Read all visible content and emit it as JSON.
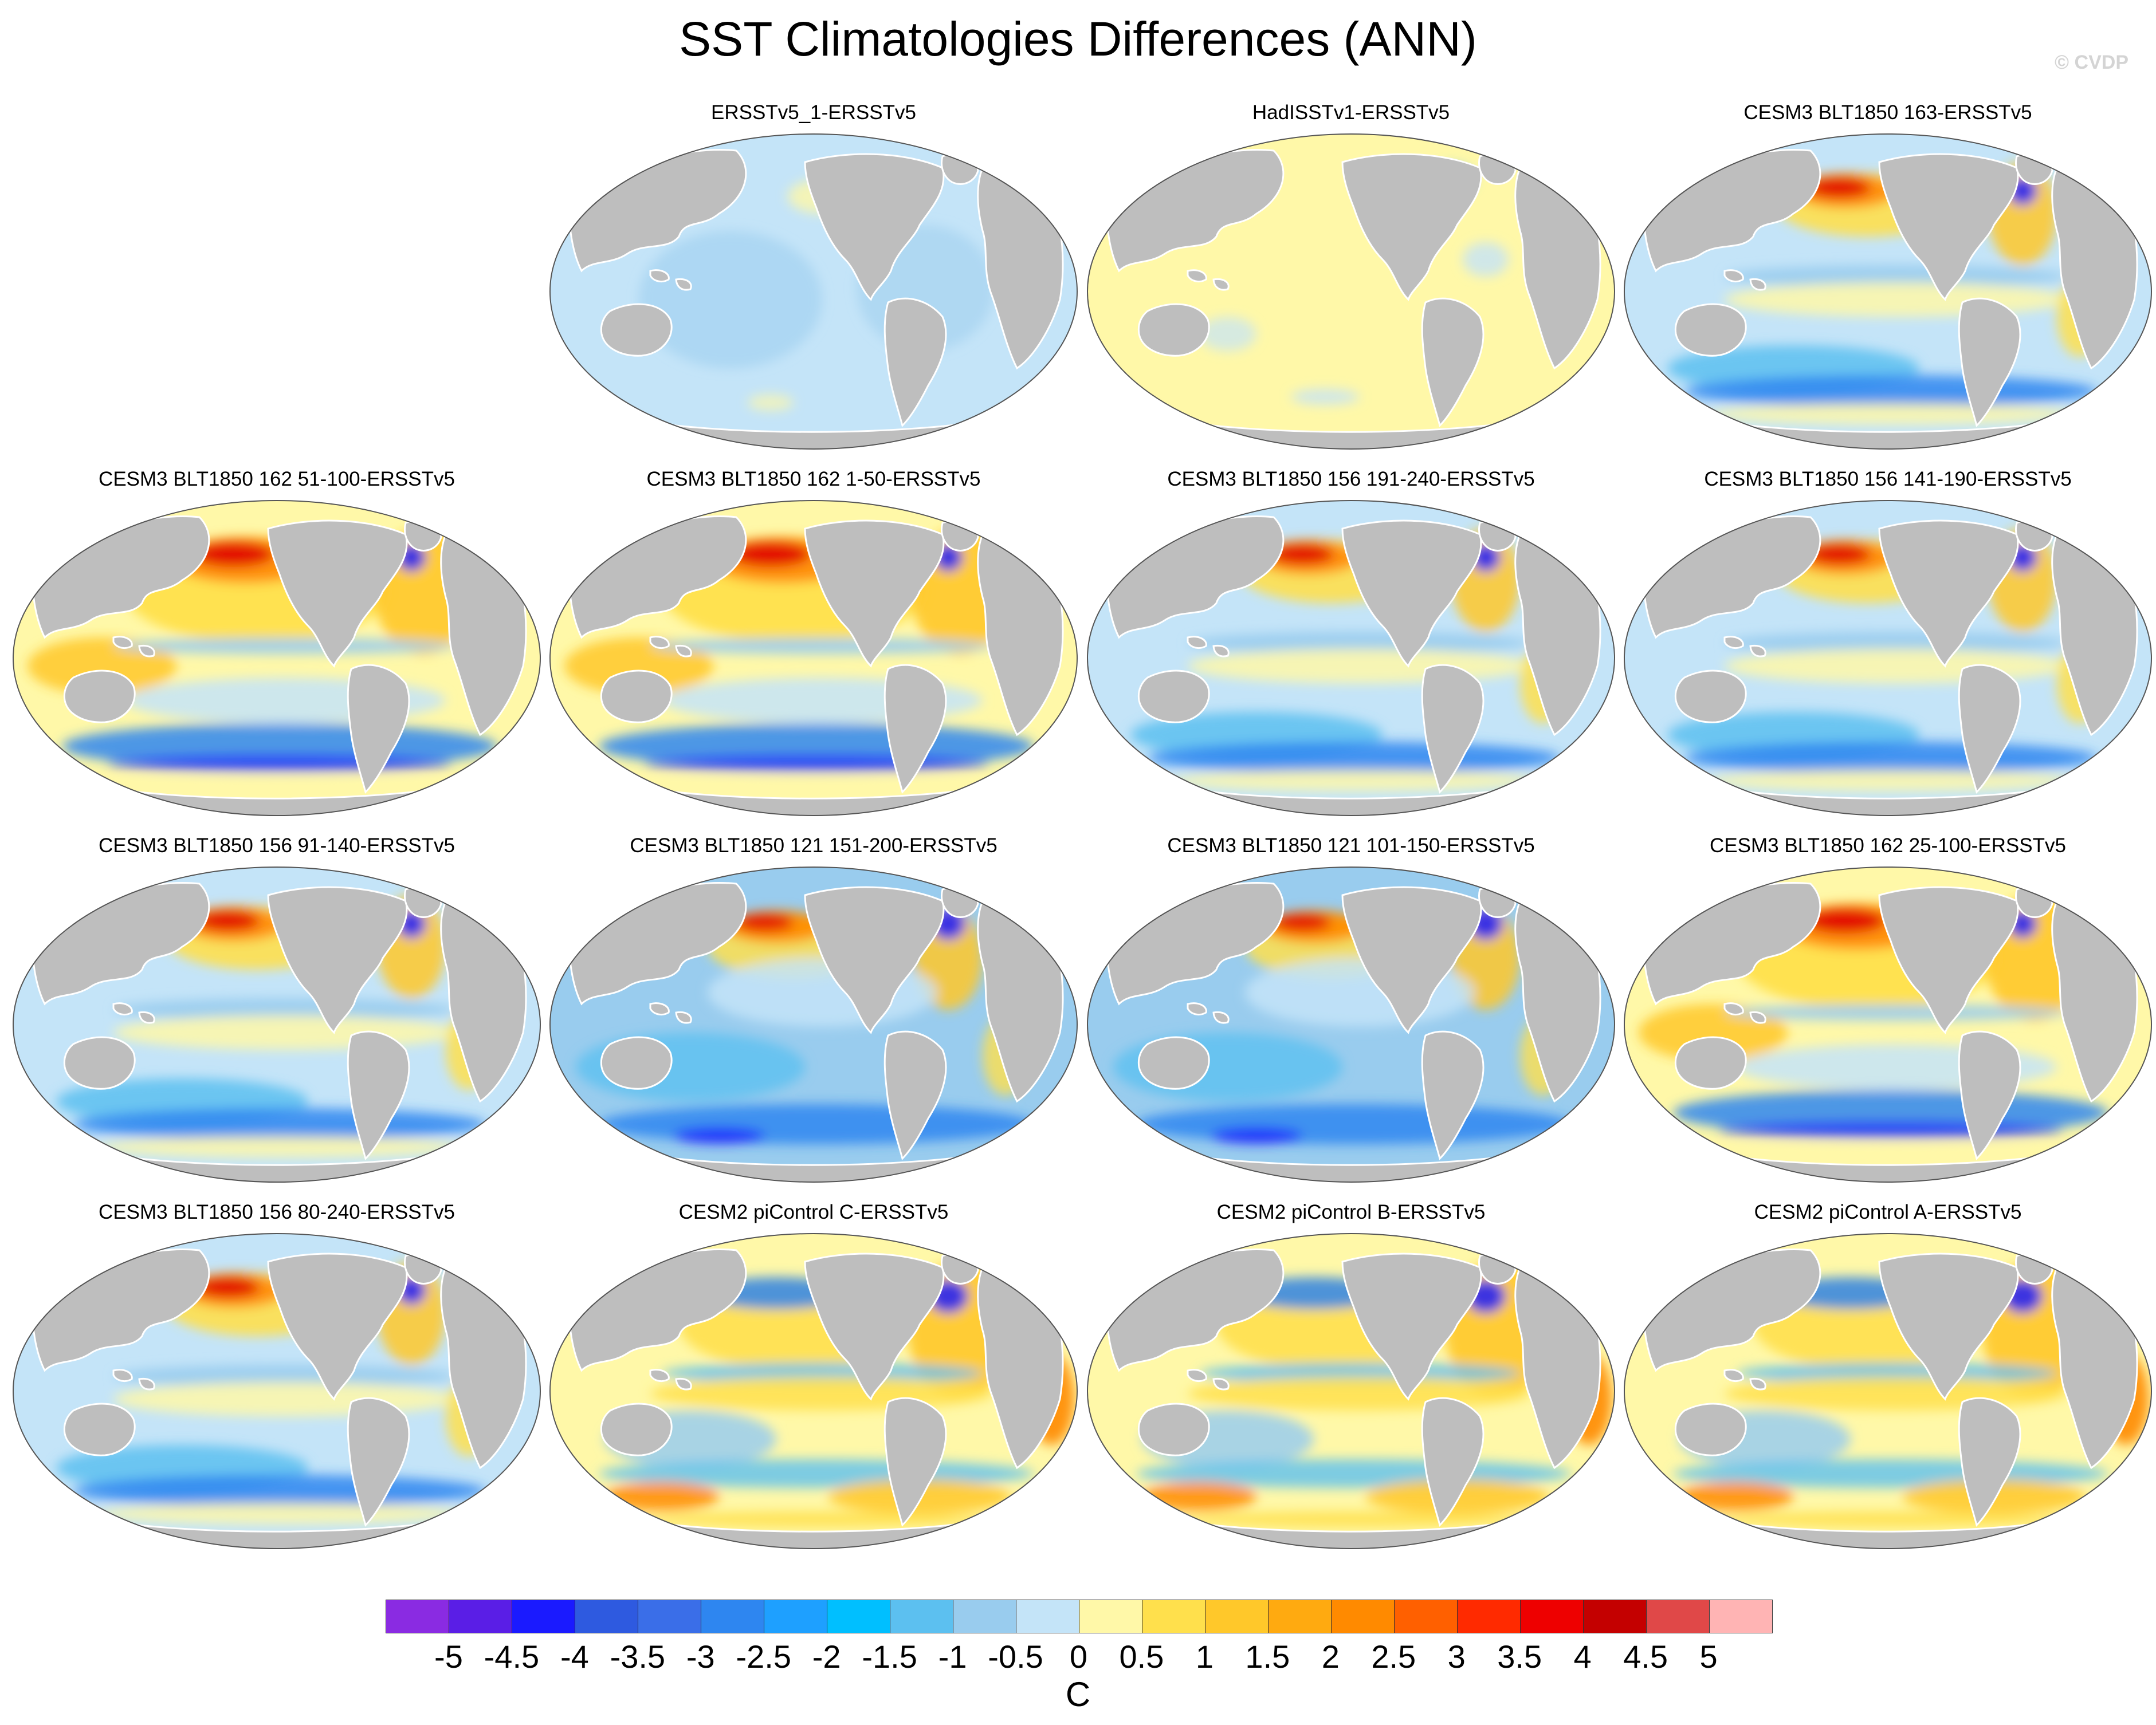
{
  "title": "SST Climatologies Differences (ANN)",
  "copyright": "© CVDP",
  "panels": [
    {
      "title": "ERSSTv5_1-ERSSTv5",
      "pattern": "uniform_cool"
    },
    {
      "title": "HadISSTv1-ERSSTv5",
      "pattern": "uniform_warm"
    },
    {
      "title": "CESM3 BLT1850 163-ERSSTv5",
      "pattern": "cesm3_cool"
    },
    {
      "title": "CESM3 BLT1850 162 51-100-ERSSTv5",
      "pattern": "cesm3_warm"
    },
    {
      "title": "CESM3 BLT1850 162 1-50-ERSSTv5",
      "pattern": "cesm3_warm"
    },
    {
      "title": "CESM3 BLT1850 156 191-240-ERSSTv5",
      "pattern": "cesm3_cool"
    },
    {
      "title": "CESM3 BLT1850 156 141-190-ERSSTv5",
      "pattern": "cesm3_cool"
    },
    {
      "title": "CESM3 BLT1850 156 91-140-ERSSTv5",
      "pattern": "cesm3_cool"
    },
    {
      "title": "CESM3 BLT1850 121 151-200-ERSSTv5",
      "pattern": "cesm3_colder"
    },
    {
      "title": "CESM3 BLT1850 121 101-150-ERSSTv5",
      "pattern": "cesm3_colder"
    },
    {
      "title": "CESM3 BLT1850 162 25-100-ERSSTv5",
      "pattern": "cesm3_warm"
    },
    {
      "title": "CESM3 BLT1850 156 80-240-ERSSTv5",
      "pattern": "cesm3_cool"
    },
    {
      "title": "CESM2 piControl C-ERSSTv5",
      "pattern": "cesm2"
    },
    {
      "title": "CESM2 piControl B-ERSSTv5",
      "pattern": "cesm2"
    },
    {
      "title": "CESM2 piControl A-ERSSTv5",
      "pattern": "cesm2"
    }
  ],
  "colorbar": {
    "units": "C",
    "labels": [
      "-5",
      "-4.5",
      "-4",
      "-3.5",
      "-3",
      "-2.5",
      "-2",
      "-1.5",
      "-1",
      "-0.5",
      "0",
      "0.5",
      "1",
      "1.5",
      "2",
      "2.5",
      "3",
      "3.5",
      "4",
      "4.5",
      "5"
    ],
    "colors": [
      "#8a2be2",
      "#5a1ee6",
      "#1a1aff",
      "#2e5ae0",
      "#3a6ee8",
      "#2e86f0",
      "#1ea0ff",
      "#00bfff",
      "#5cc0f0",
      "#99ccee",
      "#c4e4f8",
      "#fff8a8",
      "#ffe04c",
      "#ffc82a",
      "#ffaa10",
      "#ff8a00",
      "#ff6000",
      "#ff2a00",
      "#ee0000",
      "#c40000",
      "#e04848",
      "#ffb4b4"
    ]
  },
  "style": {
    "land": "#bebebe",
    "coast": "#ffffff"
  }
}
